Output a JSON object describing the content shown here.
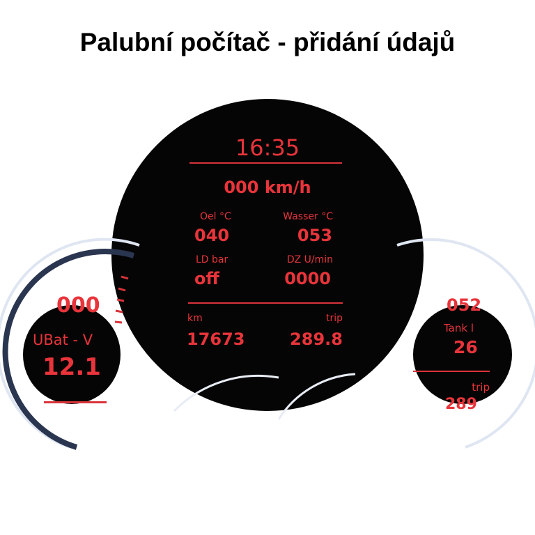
{
  "title": "Palubní počítač - přidání údajů",
  "colors": {
    "display_red": "#e8343a",
    "background": "#ffffff",
    "display_bg": "#050505"
  },
  "main_display": {
    "clock": "16:35",
    "speed": "000 km/h",
    "oil_label": "Oel °C",
    "oil_value": "040",
    "water_label": "Wasser °C",
    "water_value": "053",
    "boost_label": "LD bar",
    "boost_value": "off",
    "rpm_label": "DZ U/min",
    "rpm_value": "0000",
    "odometer_label": "km",
    "odometer_value": "17673",
    "trip_label": "trip",
    "trip_value": "289.8"
  },
  "left_detail": {
    "label": "UBat - V",
    "value": "12.1",
    "partial_top": "000"
  },
  "right_detail": {
    "label": "Tank l",
    "value": "26",
    "trip_label": "trip",
    "partial_top": "052",
    "partial_bottom": "289"
  }
}
